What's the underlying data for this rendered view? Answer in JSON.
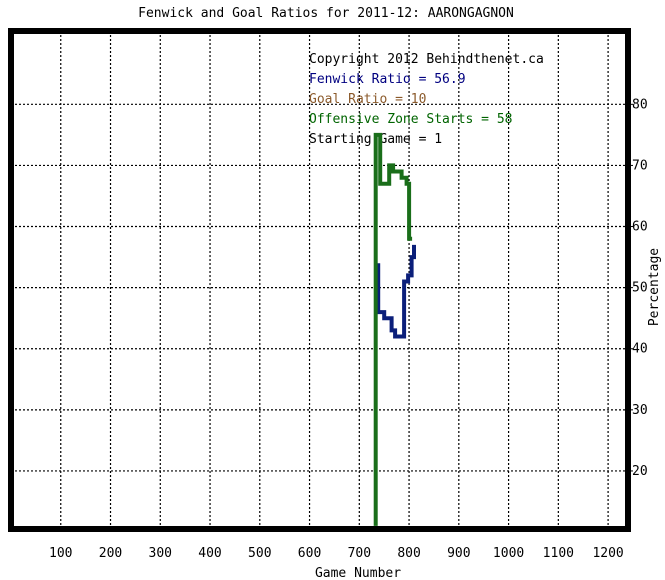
{
  "chart_data": {
    "type": "line",
    "title": "Fenwick and Goal Ratios for 2011-12: AARONGAGNON",
    "xlabel": "Game Number",
    "ylabel": "Percentage",
    "xlim": [
      0,
      1240
    ],
    "ylim": [
      10.5,
      92
    ],
    "x_ticks": [
      100,
      200,
      300,
      400,
      500,
      600,
      700,
      800,
      900,
      1000,
      1100,
      1200
    ],
    "x_tick_labels": [
      "100",
      "200",
      "300",
      "400",
      "500",
      "600",
      "700",
      "800",
      "900",
      "1000",
      "1100",
      "1200"
    ],
    "y_ticks": [
      20,
      30,
      40,
      50,
      60,
      70,
      80
    ],
    "y_tick_labels": [
      "20",
      "30",
      "40",
      "50",
      "60",
      "70",
      "80"
    ],
    "grid": true,
    "annotations": [
      {
        "text": "Copyright 2012 Behindthenet.ca",
        "color": "#000000"
      },
      {
        "text": "Fenwick Ratio = 56.9",
        "color": "#000080"
      },
      {
        "text": "Goal Ratio = 10",
        "color": "#8b5a2b"
      },
      {
        "text": "Offensive Zone Starts = 58",
        "color": "#006400"
      },
      {
        "text": "Starting Game = 1",
        "color": "#000000"
      }
    ],
    "series": [
      {
        "color": "#0b1f7a",
        "points": [
          [
            738,
            54
          ],
          [
            738,
            46
          ],
          [
            750,
            46
          ],
          [
            750,
            45
          ],
          [
            765,
            45
          ],
          [
            765,
            43
          ],
          [
            772,
            43
          ],
          [
            772,
            42
          ],
          [
            790,
            42
          ],
          [
            790,
            51
          ],
          [
            798,
            51
          ],
          [
            798,
            52
          ],
          [
            805,
            52
          ],
          [
            805,
            55
          ],
          [
            810,
            55
          ],
          [
            810,
            57
          ]
        ]
      },
      {
        "color": "#1a6e1a",
        "points": [
          [
            733,
            11
          ],
          [
            733,
            75
          ],
          [
            742,
            75
          ],
          [
            742,
            67
          ],
          [
            760,
            67
          ],
          [
            760,
            70
          ],
          [
            768,
            70
          ],
          [
            768,
            69
          ],
          [
            785,
            69
          ],
          [
            785,
            68
          ],
          [
            795,
            68
          ],
          [
            795,
            67
          ],
          [
            800,
            67
          ],
          [
            800,
            58
          ],
          [
            806,
            58
          ]
        ]
      }
    ]
  }
}
